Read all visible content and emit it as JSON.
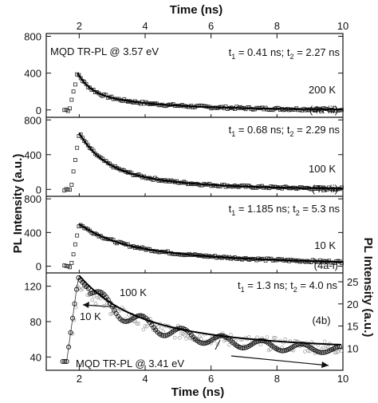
{
  "chart_data": [
    {
      "type": "scatter",
      "panel_label": "(4a-iii)",
      "temperature": "200 K",
      "header": "MQD TR-PL @ 3.57 eV",
      "fit_text": {
        "t1": "t",
        "s1": "1",
        "v1": " = 0.41 ns; t",
        "s2": "2",
        "v2": " = 2.27 ns"
      },
      "xlim": [
        1,
        10
      ],
      "ylim": [
        -80,
        830
      ],
      "yticks": [
        0,
        400,
        800
      ],
      "tau1": 0.41,
      "tau2": 2.27,
      "peak_x": 1.95,
      "peak_y": 400,
      "base_y": 0
    },
    {
      "type": "scatter",
      "panel_label": "(4a-ii)",
      "temperature": "100 K",
      "fit_text": {
        "t1": "t",
        "s1": "1",
        "v1": " = 0.68 ns; t",
        "s2": "2",
        "v2": " = 2.29 ns"
      },
      "xlim": [
        1,
        10
      ],
      "ylim": [
        -80,
        830
      ],
      "yticks": [
        0,
        400,
        800
      ],
      "tau1": 0.68,
      "tau2": 2.29,
      "peak_x": 2.0,
      "peak_y": 650,
      "base_y": 0
    },
    {
      "type": "scatter",
      "panel_label": "(4a-i)",
      "temperature": "10 K",
      "fit_text": {
        "t1": "t",
        "s1": "1",
        "v1": " = 1.185 ns; t",
        "s2": "2",
        "v2": " = 5.3 ns"
      },
      "xlim": [
        1,
        10
      ],
      "ylim": [
        -80,
        830
      ],
      "yticks": [
        0,
        400,
        800
      ],
      "tau1": 1.185,
      "tau2": 5.3,
      "peak_x": 2.0,
      "peak_y": 500,
      "base_y": 0
    },
    {
      "type": "line",
      "panel_label": "(4b)",
      "header": "MQD TR-PL @ 3.41 eV",
      "fit_text": {
        "t1": "t",
        "s1": "1",
        "v1": " = 1.3 ns; t",
        "s2": "2",
        "v2": " = 4.0 ns"
      },
      "label_10K": "10 K",
      "label_100K": "100 K",
      "xlim": [
        1,
        10
      ],
      "ylim": [
        25,
        135
      ],
      "yticks": [
        40,
        80,
        120
      ],
      "y2lim": [
        5,
        27
      ],
      "y2ticks": [
        10,
        15,
        20,
        25
      ],
      "series": [
        {
          "name": "10 K",
          "peak_x": 1.97,
          "peak_y": 130,
          "end_y": 42,
          "start_y": 35
        },
        {
          "name": "100 K",
          "peak_x": 2.0,
          "peak_y": 25,
          "end_y": 9,
          "start_y": 7
        }
      ]
    }
  ],
  "axes": {
    "xticks": [
      2,
      4,
      6,
      8,
      10
    ],
    "xlabel_top": "Time (ns)",
    "xlabel_bottom": "Time (ns)",
    "ylabel_left": "PL Intensity (a.u.)",
    "ylabel_right": "PL Intensity (a.u.)"
  }
}
